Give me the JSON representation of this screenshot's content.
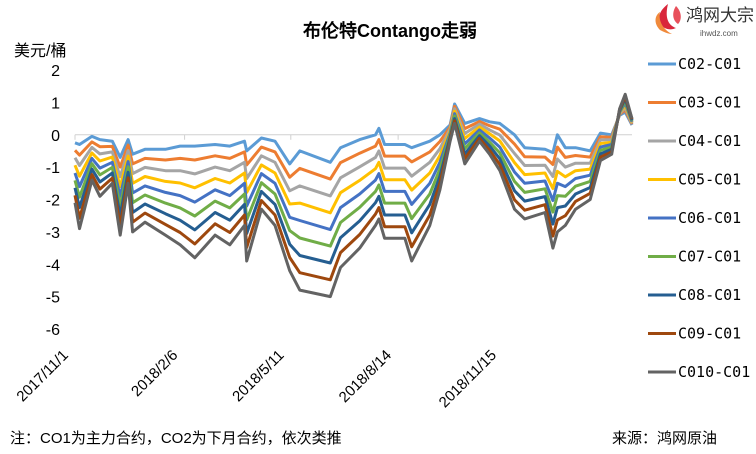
{
  "logo": {
    "name": "鸿网大宗",
    "url": "ihwdz.com"
  },
  "footer": {
    "note": "注：CO1为主力合约，CO2为下月合约，依次类推",
    "source": "来源：鸿网原油"
  },
  "chart_data": {
    "type": "line",
    "title": "布伦特Contango走弱",
    "ylabel": "美元/桶",
    "xlabel": "",
    "ylim": [
      -6,
      2
    ],
    "yticks": [
      2,
      1,
      0,
      -1,
      -2,
      -3,
      -4,
      -5,
      -6
    ],
    "xticks": [
      "2017/11/1",
      "2018/2/6",
      "2018/5/11",
      "2018/8/14",
      "2018/11/15"
    ],
    "grid": "horizontal line at 0 only",
    "legend_position": "right",
    "x": [
      "2017-11-01",
      "2017-11-05",
      "2017-11-16",
      "2017-11-23",
      "2017-12-04",
      "2017-12-11",
      "2017-12-18",
      "2017-12-22",
      "2018-01-02",
      "2018-01-20",
      "2018-02-02",
      "2018-02-15",
      "2018-03-05",
      "2018-03-18",
      "2018-03-31",
      "2018-04-02",
      "2018-04-15",
      "2018-04-27",
      "2018-05-10",
      "2018-05-19",
      "2018-06-15",
      "2018-06-24",
      "2018-07-11",
      "2018-07-25",
      "2018-07-28",
      "2018-08-02",
      "2018-08-20",
      "2018-08-26",
      "2018-09-11",
      "2018-09-20",
      "2018-09-29",
      "2018-10-03",
      "2018-10-12",
      "2018-10-25",
      "2018-11-03",
      "2018-11-12",
      "2018-11-25",
      "2018-12-04",
      "2018-12-22",
      "2018-12-29",
      "2019-01-02",
      "2019-01-09",
      "2019-01-18",
      "2019-01-31",
      "2019-02-09",
      "2019-02-19",
      "2019-02-26",
      "2019-03-03",
      "2019-03-09"
    ],
    "series": [
      {
        "name": "C02-C01",
        "color": "#5B9BD5",
        "values": [
          -0.25,
          -0.3,
          -0.05,
          -0.15,
          -0.2,
          -0.7,
          -0.15,
          -0.6,
          -0.45,
          -0.45,
          -0.35,
          -0.35,
          -0.3,
          -0.35,
          -0.2,
          -0.5,
          -0.1,
          -0.2,
          -0.9,
          -0.5,
          -0.85,
          -0.4,
          -0.15,
          0,
          0.2,
          -0.3,
          -0.3,
          -0.4,
          -0.2,
          0,
          0.3,
          0.95,
          0.35,
          0.5,
          0.4,
          0.35,
          0,
          -0.4,
          -0.45,
          -0.55,
          0,
          -0.4,
          -0.4,
          -0.5,
          0.05,
          0,
          0.6,
          0.7,
          0.3
        ]
      },
      {
        "name": "C03-C01",
        "color": "#ED7D31",
        "values": [
          -0.48,
          -0.63,
          -0.22,
          -0.37,
          -0.36,
          -1.0,
          -0.32,
          -0.9,
          -0.73,
          -0.78,
          -0.73,
          -0.78,
          -0.65,
          -0.73,
          -0.53,
          -0.93,
          -0.38,
          -0.53,
          -1.31,
          -1.04,
          -1.37,
          -0.86,
          -0.57,
          -0.35,
          -0.15,
          -0.66,
          -0.66,
          -0.84,
          -0.53,
          -0.21,
          0.24,
          0.88,
          0.19,
          0.41,
          0.28,
          0.17,
          -0.29,
          -0.68,
          -0.69,
          -0.92,
          -0.38,
          -0.7,
          -0.64,
          -0.69,
          -0.06,
          -0.08,
          0.63,
          0.77,
          0.33
        ]
      },
      {
        "name": "C04-C01",
        "color": "#A5A5A5",
        "values": [
          -0.71,
          -0.95,
          -0.39,
          -0.59,
          -0.53,
          -1.3,
          -0.49,
          -1.2,
          -1.01,
          -1.11,
          -1.11,
          -1.21,
          -1.0,
          -1.11,
          -0.85,
          -1.35,
          -0.65,
          -0.85,
          -1.73,
          -1.58,
          -1.89,
          -1.33,
          -0.99,
          -0.7,
          -0.5,
          -1.03,
          -1.03,
          -1.28,
          -0.85,
          -0.43,
          0.18,
          0.8,
          0.04,
          0.33,
          0.15,
          -0.01,
          -0.58,
          -0.95,
          -0.94,
          -1.29,
          -0.75,
          -1.0,
          -0.88,
          -0.88,
          -0.16,
          -0.15,
          0.65,
          0.84,
          0.35
        ]
      },
      {
        "name": "C05-C01",
        "color": "#FFC000",
        "values": [
          -0.94,
          -1.28,
          -0.56,
          -0.81,
          -0.69,
          -1.6,
          -0.66,
          -1.5,
          -1.29,
          -1.44,
          -1.49,
          -1.64,
          -1.35,
          -1.49,
          -1.18,
          -1.78,
          -0.93,
          -1.18,
          -2.14,
          -2.11,
          -2.41,
          -1.79,
          -1.41,
          -1.05,
          -0.85,
          -1.39,
          -1.39,
          -1.71,
          -1.18,
          -0.64,
          0.11,
          0.73,
          -0.12,
          0.24,
          0.03,
          -0.19,
          -0.86,
          -1.23,
          -1.18,
          -1.66,
          -1.13,
          -1.3,
          -1.11,
          -1.06,
          -0.27,
          -0.23,
          0.68,
          0.91,
          0.38
        ]
      },
      {
        "name": "C06-C01",
        "color": "#4472C4",
        "values": [
          -1.18,
          -1.6,
          -0.73,
          -1.03,
          -0.85,
          -1.9,
          -0.83,
          -1.8,
          -1.58,
          -1.78,
          -1.88,
          -2.08,
          -1.7,
          -1.88,
          -1.5,
          -2.2,
          -1.2,
          -1.5,
          -2.55,
          -2.65,
          -2.93,
          -2.25,
          -1.83,
          -1.4,
          -1.2,
          -1.75,
          -1.75,
          -2.15,
          -1.5,
          -0.85,
          0.05,
          0.65,
          -0.28,
          0.15,
          -0.1,
          -0.38,
          -1.15,
          -1.5,
          -1.43,
          -2.03,
          -1.5,
          -1.6,
          -1.35,
          -1.25,
          -0.38,
          -0.3,
          0.7,
          0.98,
          0.4
        ]
      },
      {
        "name": "C07-C01",
        "color": "#70AD47",
        "values": [
          -1.41,
          -1.93,
          -0.89,
          -1.24,
          -1.01,
          -2.2,
          -0.99,
          -2.1,
          -1.86,
          -2.11,
          -2.26,
          -2.51,
          -2.05,
          -2.26,
          -1.83,
          -2.63,
          -1.48,
          -1.83,
          -2.96,
          -3.19,
          -3.44,
          -2.71,
          -2.24,
          -1.75,
          -1.55,
          -2.11,
          -2.11,
          -2.59,
          -1.83,
          -1.06,
          -0.01,
          0.58,
          -0.43,
          0.06,
          -0.23,
          -0.56,
          -1.44,
          -1.78,
          -1.67,
          -2.39,
          -1.88,
          -1.9,
          -1.59,
          -1.44,
          -0.48,
          -0.38,
          0.73,
          1.04,
          0.43
        ]
      },
      {
        "name": "C08-C01",
        "color": "#255E91",
        "values": [
          -1.64,
          -2.25,
          -1.06,
          -1.46,
          -1.18,
          -2.5,
          -1.16,
          -2.4,
          -2.14,
          -2.44,
          -2.64,
          -2.94,
          -2.4,
          -2.64,
          -2.15,
          -3.05,
          -1.75,
          -2.15,
          -3.38,
          -3.73,
          -3.96,
          -3.18,
          -2.66,
          -2.1,
          -1.9,
          -2.48,
          -2.48,
          -3.03,
          -2.15,
          -1.28,
          -0.08,
          0.5,
          -0.59,
          -0.03,
          -0.35,
          -0.74,
          -1.73,
          -2.05,
          -1.91,
          -2.76,
          -2.25,
          -2.2,
          -1.83,
          -1.63,
          -0.59,
          -0.45,
          0.75,
          1.11,
          0.45
        ]
      },
      {
        "name": "C09-C01",
        "color": "#9E480E",
        "values": [
          -1.87,
          -2.58,
          -1.23,
          -1.68,
          -1.34,
          -2.8,
          -1.33,
          -2.7,
          -2.42,
          -2.77,
          -3.02,
          -3.37,
          -2.75,
          -3.02,
          -2.48,
          -3.48,
          -2.03,
          -2.48,
          -3.79,
          -4.26,
          -4.48,
          -3.64,
          -3.08,
          -2.45,
          -2.25,
          -2.84,
          -2.84,
          -3.46,
          -2.48,
          -1.49,
          -0.14,
          0.43,
          -0.74,
          -0.11,
          -0.48,
          -0.92,
          -2.01,
          -2.33,
          -2.16,
          -3.13,
          -2.63,
          -2.5,
          -2.06,
          -1.81,
          -0.69,
          -0.53,
          0.78,
          1.18,
          0.48
        ]
      },
      {
        "name": "C010-C01",
        "color": "#636363",
        "values": [
          -2.1,
          -2.9,
          -1.4,
          -1.9,
          -1.5,
          -3.1,
          -1.5,
          -3.0,
          -2.7,
          -3.1,
          -3.4,
          -3.8,
          -3.1,
          -3.4,
          -2.8,
          -3.9,
          -2.3,
          -2.8,
          -4.2,
          -4.8,
          -5.0,
          -4.1,
          -3.5,
          -2.8,
          -2.6,
          -3.2,
          -3.2,
          -3.9,
          -2.8,
          -1.7,
          -0.2,
          0.35,
          -0.9,
          -0.2,
          -0.6,
          -1.1,
          -2.3,
          -2.6,
          -2.4,
          -3.5,
          -3.0,
          -2.8,
          -2.3,
          -2.0,
          -0.8,
          -0.6,
          0.8,
          1.25,
          0.5
        ]
      }
    ]
  }
}
